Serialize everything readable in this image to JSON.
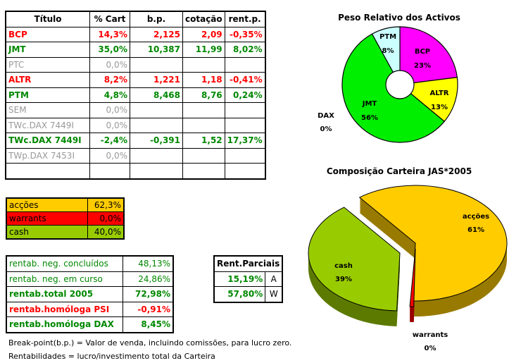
{
  "main_table": {
    "headers": [
      "Título",
      "% Cart",
      "b.p.",
      "cotação",
      "rent.p."
    ],
    "rows": [
      {
        "cells": [
          "BCP",
          "14,3%",
          "2,125",
          "2,09",
          "-0,35%"
        ],
        "style": "red"
      },
      {
        "cells": [
          "JMT",
          "35,0%",
          "10,387",
          "11,99",
          "8,02%"
        ],
        "style": "grn"
      },
      {
        "cells": [
          "PTC",
          "0,0%",
          "",
          "",
          ""
        ],
        "style": "gry"
      },
      {
        "cells": [
          "ALTR",
          "8,2%",
          "1,221",
          "1,18",
          "-0,41%"
        ],
        "style": "red"
      },
      {
        "cells": [
          "PTM",
          "4,8%",
          "8,468",
          "8,76",
          "0,24%"
        ],
        "style": "grn"
      },
      {
        "cells": [
          "SEM",
          "0,0%",
          "",
          "",
          ""
        ],
        "style": "gry"
      },
      {
        "cells": [
          "TWc.DAX 7449I",
          "0,0%",
          "",
          "",
          ""
        ],
        "style": "gry"
      },
      {
        "cells": [
          "TWc.DAX 7449I",
          "-2,4%",
          "-0,391",
          "1,52",
          "17,37%"
        ],
        "style": "grn"
      },
      {
        "cells": [
          "TWp.DAX 7453I",
          "0,0%",
          "",
          "",
          ""
        ],
        "style": "gry"
      },
      {
        "cells": [
          "",
          "",
          "",
          "",
          ""
        ],
        "style": ""
      }
    ]
  },
  "allocation": [
    {
      "label": "acções",
      "value": "62,3%",
      "color": "#ffcc00"
    },
    {
      "label": "warrants",
      "value": "0,0%",
      "color": "#ff0000"
    },
    {
      "label": "cash",
      "value": "40,0%",
      "color": "#99cc00"
    }
  ],
  "returns": [
    {
      "label": "rentab. neg. concluídos",
      "value": "48,13%",
      "style": "grn"
    },
    {
      "label": "rentab. neg. em curso",
      "value": "24,86%",
      "style": "grn"
    },
    {
      "label": "rentab.total 2005",
      "value": "72,98%",
      "style": "grn b"
    },
    {
      "label": "rentab.homóloga PSI",
      "value": "-0,91%",
      "style": "red b"
    },
    {
      "label": "rentab.homóloga DAX",
      "value": "8,45%",
      "style": "grn b"
    }
  ],
  "partial": {
    "title": "Rent.Parciais",
    "rows": [
      [
        "15,19%",
        "A"
      ],
      [
        "57,80%",
        "W"
      ]
    ]
  },
  "notes": [
    "Break-point(b.p.) = Valor de venda, incluindo comissões, para lucro zero.",
    "Rentabilidades = lucro/investimento total da Carteira"
  ],
  "chart_data": [
    {
      "type": "pie",
      "title": "Peso Relativo dos Activos",
      "donut": true,
      "slices": [
        {
          "label": "BCP",
          "value": 23,
          "text": "23%",
          "color": "#ff00ff"
        },
        {
          "label": "ALTR",
          "value": 13,
          "text": "13%",
          "color": "#ffff00"
        },
        {
          "label": "JMT",
          "value": 56,
          "text": "56%",
          "color": "#00ee00"
        },
        {
          "label": "PTM",
          "value": 8,
          "text": "8%",
          "color": "#ccffff"
        },
        {
          "label": "DAX",
          "value": 0,
          "text": "0%",
          "color": "#000000"
        }
      ]
    },
    {
      "type": "pie",
      "title": "Composição Carteira JAS*2005",
      "three_d": true,
      "slices": [
        {
          "label": "acções",
          "value": 61,
          "text": "61%",
          "color": "#ffcc00"
        },
        {
          "label": "cash",
          "value": 39,
          "text": "39%",
          "color": "#99cc00"
        },
        {
          "label": "warrants",
          "value": 0,
          "text": "0%",
          "color": "#ff0000"
        }
      ]
    }
  ]
}
